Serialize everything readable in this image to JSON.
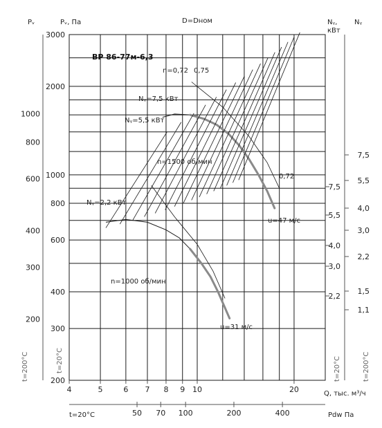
{
  "chart_data": {
    "type": "line",
    "header": {
      "pv": "Pᵥ",
      "pv_pa": "Pᵥ, Па",
      "diameter": "D=Dном",
      "ny_kw": "Nᵧ,",
      "kw_unit": "кВт",
      "ny": "Nᵧ"
    },
    "title": "ВР 86-77м-6,3",
    "x_axis": {
      "label": "Q, тыс. м³/ч",
      "scale": "log",
      "range": [
        4,
        25
      ],
      "ticks": [
        "4",
        "5",
        "6",
        "7",
        "8",
        "9",
        "10",
        "20"
      ],
      "values": [
        4,
        5,
        6,
        7,
        8,
        9,
        10,
        20
      ]
    },
    "bottom_axis": {
      "label": "Pdw Па",
      "temp": "t=20°C",
      "ticks": [
        "50",
        "70",
        "100",
        "200",
        "400"
      ],
      "values": [
        50,
        70,
        100,
        200,
        400
      ]
    },
    "pv_axis": {
      "label": "Pᵥ, Па",
      "scale": "log",
      "range": [
        200,
        3000
      ],
      "ticks": [
        "200",
        "300",
        "400",
        "600",
        "800",
        "1000",
        "2000",
        "3000"
      ],
      "values": [
        200,
        300,
        400,
        600,
        800,
        1000,
        2000,
        3000
      ]
    },
    "pv200_axis": {
      "ticks": [
        "200",
        "300",
        "400",
        "600",
        "800",
        "1000"
      ],
      "values": [
        200,
        300,
        400,
        600,
        800,
        1000
      ]
    },
    "ny_axis_20": {
      "ticks": [
        "2,2",
        "3,0",
        "4,0",
        "5,5",
        "7,5"
      ],
      "values": [
        2.2,
        3.0,
        4.0,
        5.5,
        7.5
      ]
    },
    "ny_axis_200": {
      "ticks": [
        "1,1",
        "1,5",
        "2,2",
        "3,0",
        "4,0",
        "5,5",
        "7,5"
      ],
      "values": [
        1.1,
        1.5,
        2.2,
        3.0,
        4.0,
        5.5,
        7.5
      ]
    },
    "temp_labels": {
      "t200_left": "t=200°C",
      "t20_left": "t=20°C",
      "t20_right": "t=20°C",
      "t200_right": "t=200°C"
    },
    "efficiency_labels": [
      "η=0,72",
      "0,75",
      "0,72"
    ],
    "power_labels": [
      "Nᵧ=7,5 кВт",
      "Nᵧ=5,5 кВт",
      "Nᵧ=2,2 кВт"
    ],
    "speed_labels": [
      "n=1500 об/мин",
      "n=1000 об/мин"
    ],
    "velocity_labels": [
      "u=47 м/с",
      "u=31 м/с"
    ],
    "series": [
      {
        "name": "n=1500 об/мин",
        "points": [
          [
            7.8,
            1570
          ],
          [
            8.5,
            1610
          ],
          [
            9.5,
            1600
          ],
          [
            10.5,
            1550
          ],
          [
            11.5,
            1480
          ],
          [
            12.5,
            1380
          ],
          [
            13.5,
            1260
          ],
          [
            14.5,
            1130
          ],
          [
            15.5,
            1000
          ],
          [
            16.5,
            880
          ],
          [
            17.4,
            770
          ]
        ],
        "working_from": 8
      },
      {
        "name": "n=1000 об/мин",
        "points": [
          [
            5.2,
            690
          ],
          [
            6.0,
            705
          ],
          [
            7.0,
            690
          ],
          [
            8.0,
            650
          ],
          [
            8.8,
            610
          ],
          [
            9.5,
            560
          ],
          [
            10.3,
            500
          ],
          [
            11.0,
            450
          ],
          [
            11.6,
            400
          ],
          [
            12.1,
            360
          ],
          [
            12.6,
            325
          ]
        ],
        "working_from": 5
      }
    ],
    "constant_velocity_lines": [
      {
        "label": "u=47 м/с",
        "points": [
          [
            9.6,
            2070
          ],
          [
            12,
            1700
          ],
          [
            14.5,
            1350
          ],
          [
            16.5,
            1100
          ],
          [
            18,
            900
          ]
        ]
      },
      {
        "label": "u=31 м/с",
        "points": [
          [
            7.2,
            920
          ],
          [
            8.5,
            720
          ],
          [
            10,
            580
          ],
          [
            11.2,
            470
          ],
          [
            12.2,
            380
          ]
        ]
      }
    ],
    "grid": true
  }
}
